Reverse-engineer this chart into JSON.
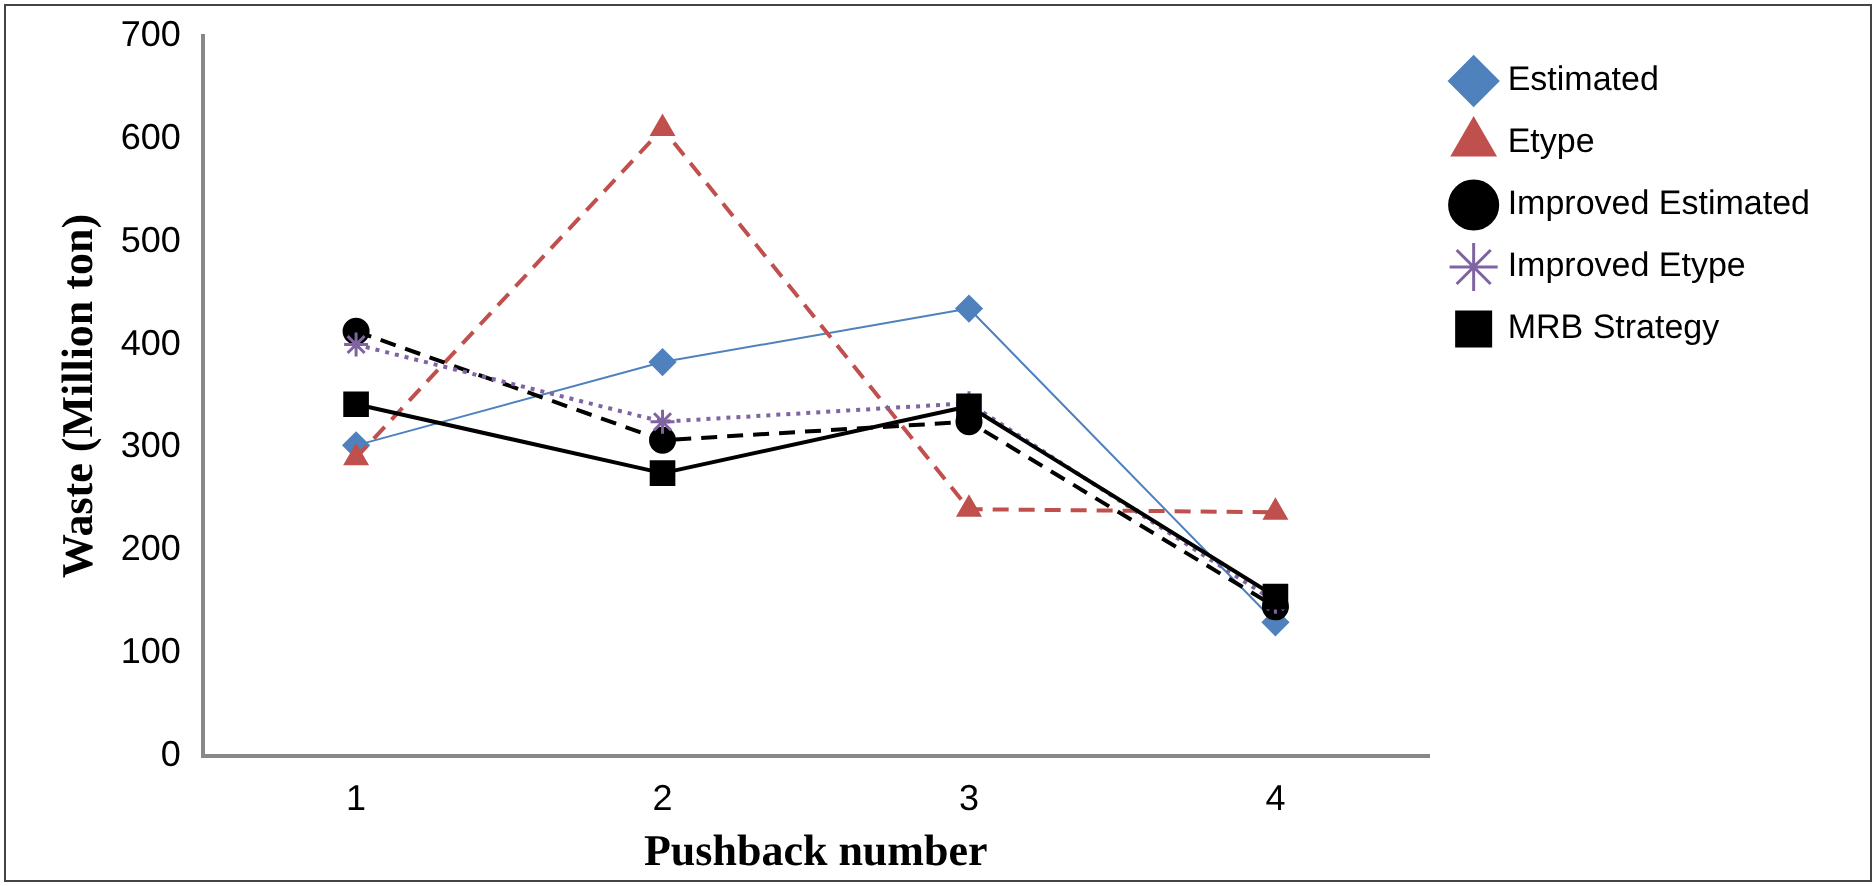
{
  "chart_data": {
    "type": "line",
    "xlabel": "Pushback number",
    "ylabel": "Waste (Million ton)",
    "categories": [
      "1",
      "2",
      "3",
      "4"
    ],
    "ylim": [
      0,
      700
    ],
    "yticks": [
      0,
      100,
      200,
      300,
      400,
      500,
      600,
      700
    ],
    "grid": false,
    "legend": "top right",
    "series": [
      {
        "name": "Estimated",
        "color": "#4f81bd",
        "marker": "diamond",
        "line_style": "solid",
        "values": [
          302,
          383,
          435,
          130
        ]
      },
      {
        "name": "Etype",
        "color": "#c0504d",
        "marker": "triangle",
        "line_style": "dashed",
        "values": [
          290,
          610,
          240,
          237
        ]
      },
      {
        "name": "Improved Estimated",
        "color": "#000000",
        "marker": "circle",
        "line_style": "dashed",
        "values": [
          413,
          307,
          325,
          145
        ]
      },
      {
        "name": "Improved Etype",
        "color": "#8064a2",
        "marker": "cross",
        "line_style": "dotted",
        "values": [
          400,
          325,
          343,
          150
        ]
      },
      {
        "name": "MRB Strategy",
        "color": "#000000",
        "marker": "square",
        "line_style": "solid",
        "values": [
          342,
          275,
          340,
          155
        ]
      }
    ]
  }
}
